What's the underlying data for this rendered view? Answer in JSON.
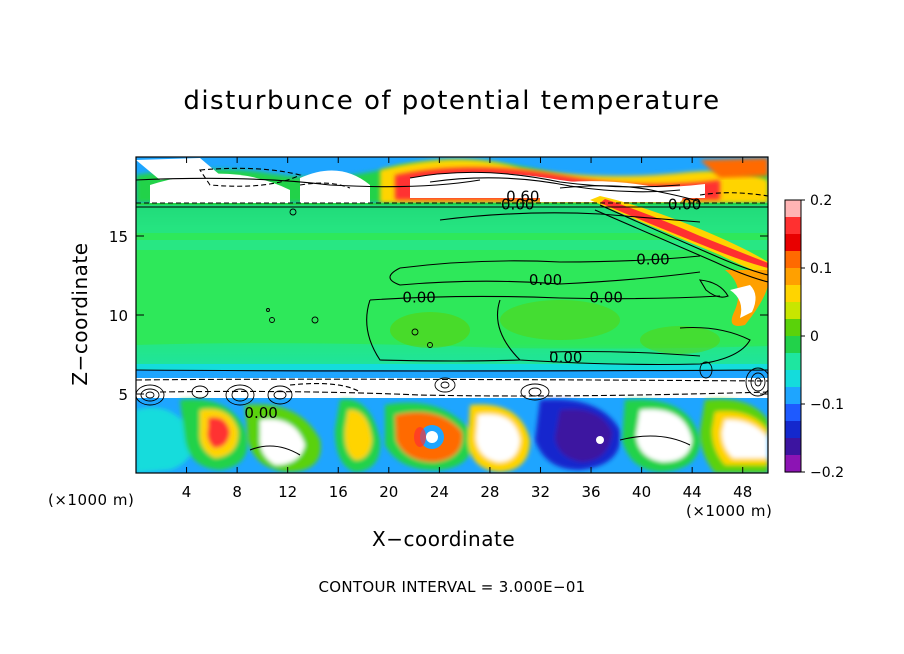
{
  "chart_data": {
    "type": "heatmap",
    "title": "disturbunce of potential temperature",
    "xlabel": "X−coordinate",
    "ylabel": "Z−coordinate",
    "x_unit": "(×1000 m)",
    "xlim": [
      0,
      50
    ],
    "ylim": [
      0,
      20
    ],
    "xticks": [
      4,
      8,
      12,
      16,
      20,
      24,
      28,
      32,
      36,
      40,
      44,
      48
    ],
    "yticks": [
      5,
      10,
      15
    ],
    "colorbar": {
      "range": [
        -0.2,
        0.2
      ],
      "ticks": [
        0.2,
        0.1,
        0,
        -0.1,
        -0.2
      ],
      "tick_labels": [
        "0.2",
        "0.1",
        "0",
        "−0.1",
        "−0.2"
      ],
      "colors": [
        "#ffb4b4",
        "#ff3030",
        "#e80000",
        "#ff6a00",
        "#ffa000",
        "#ffd400",
        "#c8e600",
        "#5ad20a",
        "#22d24a",
        "#1ee6a0",
        "#14dcdc",
        "#1ea5ff",
        "#1e5aff",
        "#1428cd",
        "#3c14a0",
        "#8c14b4"
      ]
    },
    "contour_labels": [
      {
        "text": "0.60",
        "x": 30.6,
        "y": 17.5
      },
      {
        "text": "0.00",
        "x": 30.2,
        "y": 17.0
      },
      {
        "text": "0.00",
        "x": 43.4,
        "y": 17.0
      },
      {
        "text": "0.00",
        "x": 40.9,
        "y": 13.5
      },
      {
        "text": "0.00",
        "x": 32.4,
        "y": 12.2
      },
      {
        "text": "0.00",
        "x": 22.4,
        "y": 11.1
      },
      {
        "text": "0.00",
        "x": 37.2,
        "y": 11.1
      },
      {
        "text": "0.00",
        "x": 34.0,
        "y": 7.3
      },
      {
        "text": "0.00",
        "x": 9.9,
        "y": 3.8
      }
    ],
    "contour_interval_note": "CONTOUR INTERVAL = 3.000E−01"
  }
}
